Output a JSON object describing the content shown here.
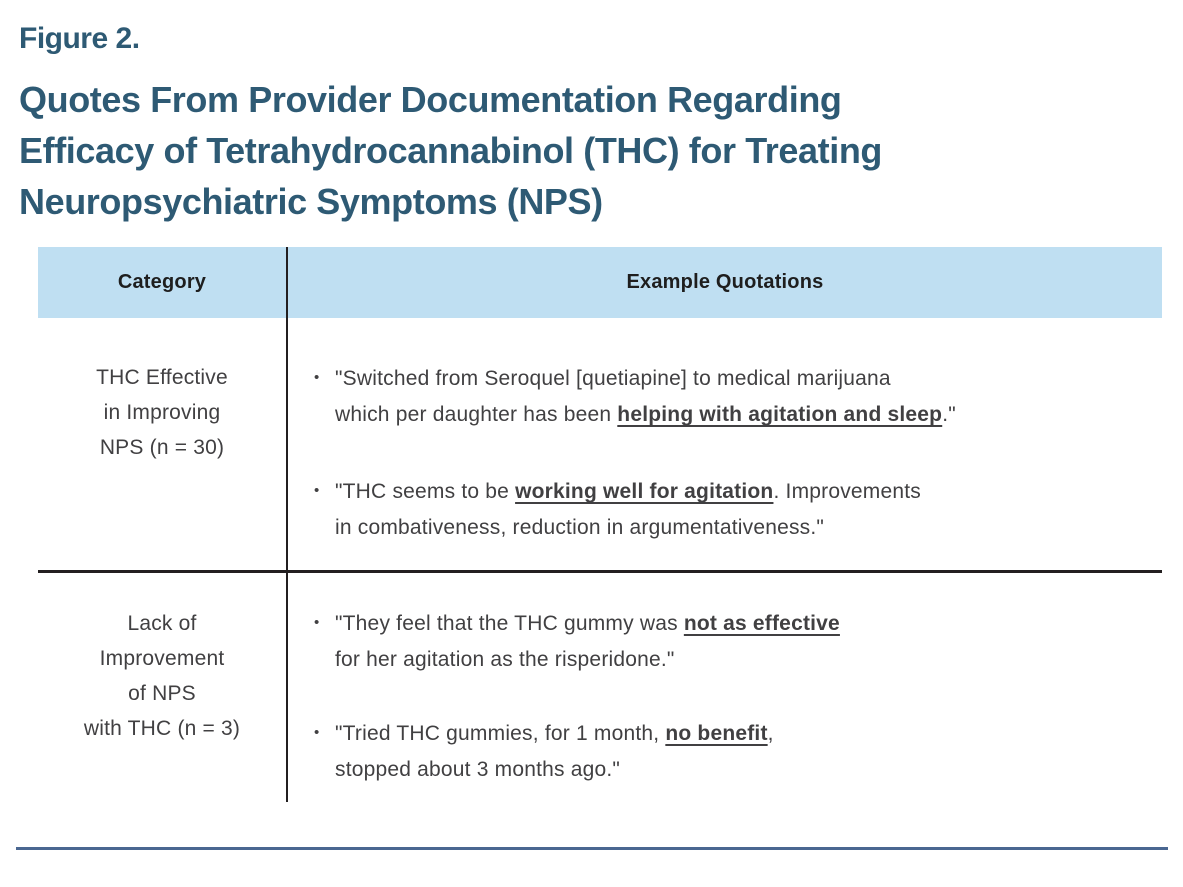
{
  "figure": {
    "label": "Figure 2."
  },
  "title": {
    "line1": "Quotes From Provider Documentation Regarding",
    "line2": "Efficacy of Tetrahydrocannabinol (THC) for Treating",
    "line3": "Neuropsychiatric Symptoms (NPS)"
  },
  "bullet_glyph": "•",
  "table": {
    "header": {
      "category": "Category",
      "quotations": "Example Quotations"
    },
    "rows": [
      {
        "category": [
          "THC Effective",
          "in Improving",
          "NPS (n = 30)"
        ],
        "quotes": [
          {
            "l1a": "\"Switched from Seroquel [quetiapine] to medical marijuana",
            "l2a": "which per daughter has been ",
            "l2em": "helping with agitation and sleep",
            "l2b": ".\""
          },
          {
            "l1a": "\"THC seems to be ",
            "l1em": "working well for agitation",
            "l1b": ". Improvements",
            "l2a": "in combativeness, reduction in argumentativeness.\""
          }
        ]
      },
      {
        "category": [
          "Lack of",
          "Improvement",
          "of NPS",
          "with THC (n = 3)"
        ],
        "quotes": [
          {
            "l1a": "\"They feel that the THC gummy was ",
            "l1em": "not as effective",
            "l2a": "for her agitation as the risperidone.\""
          },
          {
            "l1a": "\"Tried THC gummies, for 1 month, ",
            "l1em": "no benefit",
            "l1b": ",",
            "l2a": "stopped about 3 months ago.\""
          }
        ]
      }
    ]
  },
  "colors": {
    "title_text": "#2E5A74",
    "header_bg": "#BFDFF2",
    "header_text": "#1E1E1E",
    "body_text": "#414042",
    "line": "#231F20",
    "rule": "#4A6791"
  }
}
